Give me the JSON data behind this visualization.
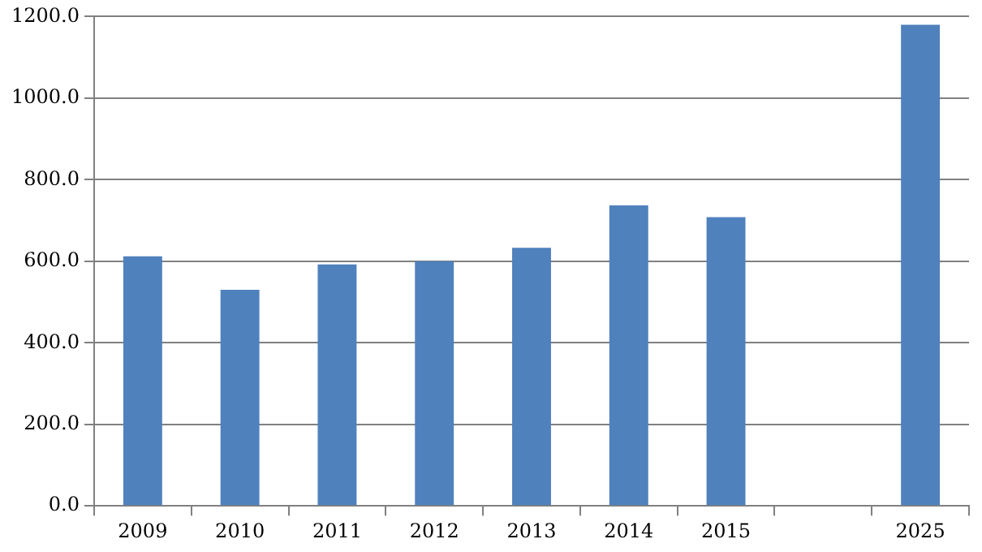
{
  "chart_data": {
    "type": "bar",
    "categories": [
      "2009",
      "2010",
      "2011",
      "2012",
      "2013",
      "2014",
      "2015",
      null,
      "2025"
    ],
    "values": [
      612,
      530,
      592,
      600,
      633,
      737,
      708,
      null,
      1180
    ],
    "color": "#4f81bd",
    "ylim": [
      0,
      1200
    ],
    "yticks": [
      {
        "value": 0,
        "label": "0.0"
      },
      {
        "value": 200,
        "label": "200.0"
      },
      {
        "value": 400,
        "label": "400.0"
      },
      {
        "value": 600,
        "label": "600.0"
      },
      {
        "value": 800,
        "label": "800.0"
      },
      {
        "value": 1000,
        "label": "1000.0"
      },
      {
        "value": 1200,
        "label": "1200.0"
      }
    ],
    "grid": "y"
  }
}
